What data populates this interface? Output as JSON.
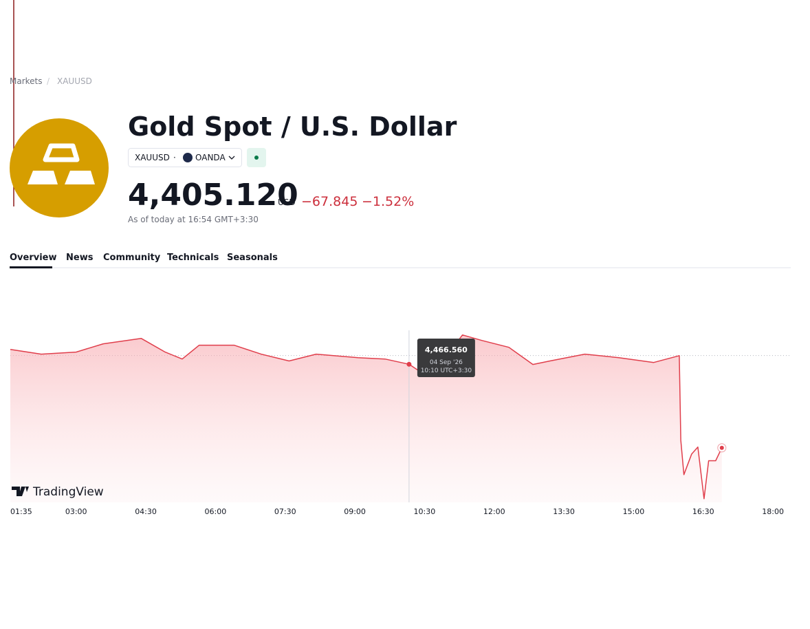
{
  "breadcrumb": [
    "Markets",
    "XAUUSD"
  ],
  "header": {
    "title": "Gold Spot / U.S. Dollar",
    "symbol": "XAUUSD",
    "exchange": "OANDA",
    "price": "4,405.120",
    "currency": "USD",
    "change": "−67.845",
    "change_percent": "−1.52%",
    "as_of": "As of today at 16:54 GMT+3:30"
  },
  "tabs": [
    "Overview",
    "News",
    "Community",
    "Technicals",
    "Seasonals"
  ],
  "brand": "TradingView",
  "chart_data": {
    "type": "area",
    "x": [
      "01:35",
      "02:15",
      "03:00",
      "03:35",
      "04:24",
      "04:55",
      "05:17",
      "05:39",
      "06:24",
      "06:59",
      "07:35",
      "08:10",
      "09:04",
      "09:39",
      "10:10",
      "10:24",
      "10:50",
      "11:19",
      "11:44",
      "12:19",
      "12:50",
      "13:12",
      "13:57",
      "14:41",
      "15:26",
      "15:59",
      "16:01",
      "16:05",
      "16:15",
      "16:23",
      "16:31",
      "16:37",
      "16:46",
      "16:54"
    ],
    "series": [
      {
        "name": "XAUUSD",
        "color": "#e03e4b",
        "values": [
          4477.5,
          4474.0,
          4475.5,
          4481.6,
          4485.6,
          4475.5,
          4470.4,
          4480.6,
          4480.6,
          4474.0,
          4469.0,
          4474.0,
          4471.4,
          4470.4,
          4466.56,
          4461.3,
          4466.4,
          4488.1,
          4484.1,
          4479.0,
          4466.4,
          4469.0,
          4474.0,
          4471.4,
          4467.9,
          4472.9,
          4410.7,
          4385.4,
          4400.6,
          4405.7,
          4367.7,
          4395.6,
          4395.6,
          4405.12
        ]
      }
    ],
    "previous_close": 4472.965,
    "xlim": [
      "01:35",
      "18:23"
    ],
    "ylim": [
      4365,
      4532
    ],
    "xticks": [
      "01:35",
      "03:00",
      "04:30",
      "06:00",
      "07:30",
      "09:00",
      "10:30",
      "12:00",
      "13:30",
      "15:00",
      "16:30",
      "18:00"
    ],
    "tooltip": {
      "x": "10:10",
      "value": 4466.56,
      "value_label": "4,466.560",
      "date": "04 Sep '26",
      "time": "10:10 UTC+3:30"
    }
  }
}
